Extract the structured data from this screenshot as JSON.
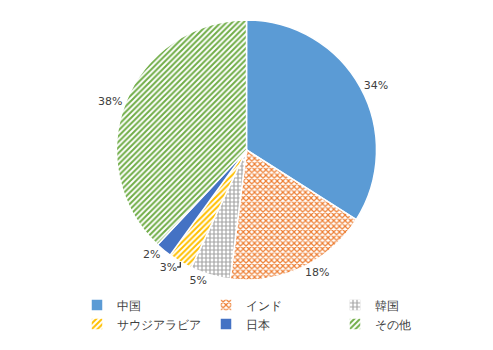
{
  "chart_data": {
    "type": "pie",
    "categories": [
      "中国",
      "インド",
      "韓国",
      "サウジアラビア",
      "日本",
      "その他"
    ],
    "values": [
      34,
      18,
      5,
      3,
      2,
      38
    ],
    "value_labels": [
      "34%",
      "18%",
      "5%",
      "3%",
      "2%",
      "38%"
    ],
    "colors": [
      "#5b9bd5",
      "#ed7d31",
      "#a5a5a5",
      "#ffc000",
      "#4472c4",
      "#70ad47"
    ],
    "data_labels": true,
    "legend": "bottom"
  }
}
